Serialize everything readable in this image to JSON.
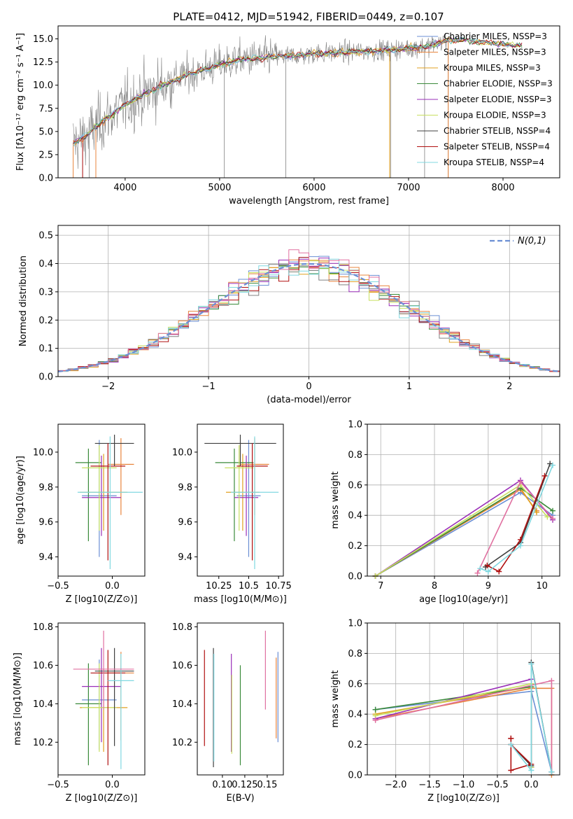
{
  "figure_title": "PLATE=0412, MJD=51942, FIBERID=0449, z=0.107",
  "model_colors": [
    "#6b8fd4",
    "#e8843c",
    "#e0a020",
    "#3a8a3a",
    "#9a2fb8",
    "#c8e060",
    "#404040",
    "#b01010",
    "#80d8e0"
  ],
  "chart_data": [
    {
      "id": "spectrum",
      "type": "line",
      "title": "PLATE=0412, MJD=51942, FIBERID=0449, z=0.107",
      "xlabel": "wavelength [Angstrom, rest frame]",
      "ylabel": "Flux [fλ10⁻¹⁷ erg cm⁻² s⁻¹ A⁻¹]",
      "xlim": [
        3290,
        8600
      ],
      "ylim": [
        0,
        16.4
      ],
      "xticks": [
        4000,
        5000,
        6000,
        7000,
        8000
      ],
      "yticks": [
        0.0,
        2.5,
        5.0,
        7.5,
        10.0,
        12.5,
        15.0
      ],
      "legend_position": "top-right",
      "legend": [
        {
          "label": "Chabrier MILES, NSSP=3",
          "color": "#6b8fd4"
        },
        {
          "label": "Salpeter MILES, NSSP=3",
          "color": "#e8843c"
        },
        {
          "label": "Kroupa MILES, NSSP=3",
          "color": "#e0a020"
        },
        {
          "label": "Chabrier ELODIE, NSSP=3",
          "color": "#3a8a3a"
        },
        {
          "label": "Salpeter ELODIE, NSSP=3",
          "color": "#9a2fb8"
        },
        {
          "label": "Kroupa ELODIE, NSSP=3",
          "color": "#c8e060"
        },
        {
          "label": "Chabrier STELIB, NSSP=4",
          "color": "#404040"
        },
        {
          "label": "Salpeter STELIB, NSSP=4",
          "color": "#b01010"
        },
        {
          "label": "Kroupa STELIB, NSSP=4",
          "color": "#80d8e0"
        }
      ],
      "continuum": {
        "x": [
          3450,
          3550,
          3700,
          3850,
          4000,
          4200,
          4400,
          4600,
          4800,
          5000,
          5200,
          5400,
          5600,
          5800,
          6000,
          6200,
          6400,
          6600,
          6800,
          7000,
          7200,
          7400,
          7600,
          7800,
          8000,
          8200
        ],
        "y": [
          3.8,
          4.2,
          5.6,
          6.8,
          7.9,
          9.0,
          10.0,
          10.9,
          11.6,
          12.2,
          12.7,
          12.9,
          13.1,
          13.2,
          13.4,
          13.5,
          13.6,
          13.7,
          13.8,
          14.0,
          14.2,
          14.8,
          14.9,
          14.6,
          14.4,
          14.2
        ]
      },
      "data_series": {
        "x_start": 3450,
        "x_end": 7400,
        "step": 5,
        "color": "#808080"
      },
      "spikes": [
        {
          "x": 3550,
          "y": 0.0
        },
        {
          "x": 3620,
          "y": 0.0
        },
        {
          "x": 3690,
          "y": 0.0
        },
        {
          "x": 5050,
          "y": 0.0
        },
        {
          "x": 5700,
          "y": 0.0
        },
        {
          "x": 6810,
          "y": 0.0
        },
        {
          "x": 7170,
          "y": 0.0
        },
        {
          "x": 7420,
          "y": 0.0
        }
      ]
    },
    {
      "id": "residuals",
      "type": "histogram",
      "xlabel": "(data-model)/error",
      "ylabel": "Normed distribution",
      "xlim": [
        -2.5,
        2.5
      ],
      "ylim": [
        0,
        0.535
      ],
      "xticks": [
        -2,
        -1,
        0,
        1,
        2
      ],
      "yticks": [
        0.0,
        0.1,
        0.2,
        0.3,
        0.4,
        0.5
      ],
      "grid": true,
      "bin_width": 0.1,
      "legend_position": "top-right",
      "legend": [
        {
          "label": "N(0,1)",
          "color": "#6b8fd4",
          "style": "dashed"
        }
      ]
    },
    {
      "id": "age-vs-z",
      "type": "errorbar",
      "xlabel": "Z [log10(Z/Z⊙)]",
      "ylabel": "age [log10(age/yr)]",
      "xlim": [
        -0.5,
        0.3
      ],
      "ylim": [
        9.29,
        10.16
      ],
      "xticks": [
        -0.5,
        0.0
      ],
      "yticks": [
        9.4,
        9.6,
        9.8,
        10.0
      ],
      "points": [
        {
          "x": -0.12,
          "y": 9.75,
          "xerr": 0.16,
          "ylo": 9.4,
          "yhi": 10.07,
          "color": "#6b8fd4"
        },
        {
          "x": 0.08,
          "y": 9.93,
          "xerr": 0.12,
          "ylo": 9.64,
          "yhi": 10.08,
          "color": "#e8843c"
        },
        {
          "x": -0.08,
          "y": 9.77,
          "xerr": 0.22,
          "ylo": 9.55,
          "yhi": 9.99,
          "color": "#e0a020"
        },
        {
          "x": -0.22,
          "y": 9.94,
          "xerr": 0.12,
          "ylo": 9.49,
          "yhi": 10.02,
          "color": "#3a8a3a"
        },
        {
          "x": -0.1,
          "y": 9.74,
          "xerr": 0.18,
          "ylo": 9.52,
          "yhi": 9.98,
          "color": "#9a2fb8"
        },
        {
          "x": -0.12,
          "y": 9.91,
          "xerr": 0.16,
          "ylo": 9.55,
          "yhi": 10.04,
          "color": "#c8e060"
        },
        {
          "x": 0.02,
          "y": 10.05,
          "xerr": 0.18,
          "ylo": 9.92,
          "yhi": 10.1,
          "color": "#404040"
        },
        {
          "x": -0.04,
          "y": 9.92,
          "xerr": 0.16,
          "ylo": 9.38,
          "yhi": 10.05,
          "color": "#b01010"
        },
        {
          "x": -0.02,
          "y": 9.77,
          "xerr": 0.3,
          "ylo": 9.33,
          "yhi": 10.09,
          "color": "#80d8e0"
        }
      ]
    },
    {
      "id": "age-vs-mass",
      "type": "errorbar",
      "xlabel": "mass [log10(M/M⊙)]",
      "ylabel": "",
      "xlim": [
        10.07,
        10.79
      ],
      "ylim": [
        9.29,
        10.16
      ],
      "xticks": [
        10.25,
        10.5,
        10.75
      ],
      "yticks": [
        9.4,
        9.6,
        9.8,
        10.0
      ],
      "points": [
        {
          "x": 10.5,
          "y": 9.75,
          "xerr": 0.1,
          "ylo": 9.4,
          "yhi": 10.07,
          "color": "#6b8fd4"
        },
        {
          "x": 10.55,
          "y": 9.93,
          "xerr": 0.12,
          "ylo": 9.64,
          "yhi": 10.08,
          "color": "#e8843c"
        },
        {
          "x": 10.45,
          "y": 9.77,
          "xerr": 0.14,
          "ylo": 9.55,
          "yhi": 9.99,
          "color": "#e0a020"
        },
        {
          "x": 10.38,
          "y": 9.94,
          "xerr": 0.16,
          "ylo": 9.49,
          "yhi": 10.02,
          "color": "#3a8a3a"
        },
        {
          "x": 10.48,
          "y": 9.74,
          "xerr": 0.1,
          "ylo": 9.52,
          "yhi": 9.98,
          "color": "#9a2fb8"
        },
        {
          "x": 10.42,
          "y": 9.91,
          "xerr": 0.12,
          "ylo": 9.55,
          "yhi": 10.04,
          "color": "#c8e060"
        },
        {
          "x": 10.43,
          "y": 10.05,
          "xerr": 0.3,
          "ylo": 9.92,
          "yhi": 10.1,
          "color": "#404040"
        },
        {
          "x": 10.53,
          "y": 9.92,
          "xerr": 0.13,
          "ylo": 9.38,
          "yhi": 10.05,
          "color": "#b01010"
        },
        {
          "x": 10.55,
          "y": 9.77,
          "xerr": 0.2,
          "ylo": 9.33,
          "yhi": 10.09,
          "color": "#80d8e0"
        }
      ]
    },
    {
      "id": "weight-vs-age",
      "type": "line",
      "xlabel": "age [log10(age/yr)]",
      "ylabel": "mass weight",
      "xlim": [
        6.75,
        10.33
      ],
      "ylim": [
        0.0,
        1.0
      ],
      "xticks": [
        7,
        8,
        9,
        10
      ],
      "yticks": [
        0.0,
        0.2,
        0.4,
        0.6,
        0.8,
        1.0
      ],
      "grid": true,
      "series": [
        {
          "color": "#6b8fd4",
          "x": [
            6.9,
            9.6,
            10.2
          ],
          "y": [
            0.0,
            0.55,
            0.4
          ]
        },
        {
          "color": "#e8843c",
          "x": [
            6.9,
            9.6,
            9.9
          ],
          "y": [
            0.0,
            0.57,
            0.43
          ]
        },
        {
          "color": "#e0a020",
          "x": [
            6.9,
            9.6,
            9.9
          ],
          "y": [
            0.0,
            0.58,
            0.42
          ]
        },
        {
          "color": "#3a8a3a",
          "x": [
            6.9,
            9.6,
            10.2
          ],
          "y": [
            0.0,
            0.58,
            0.43
          ]
        },
        {
          "color": "#9a2fb8",
          "x": [
            6.9,
            9.6,
            10.2
          ],
          "y": [
            0.0,
            0.63,
            0.37
          ]
        },
        {
          "color": "#c8e060",
          "x": [
            6.9,
            9.6,
            10.1
          ],
          "y": [
            0.0,
            0.6,
            0.39
          ]
        },
        {
          "color": "#e070a0",
          "x": [
            8.8,
            9.6,
            10.2
          ],
          "y": [
            0.02,
            0.62,
            0.38
          ]
        },
        {
          "color": "#404040",
          "x": [
            8.95,
            9.6,
            10.15
          ],
          "y": [
            0.06,
            0.22,
            0.74
          ]
        },
        {
          "color": "#b01010",
          "x": [
            8.98,
            9.2,
            9.6,
            10.05
          ],
          "y": [
            0.07,
            0.03,
            0.24,
            0.66
          ]
        },
        {
          "color": "#80d8e0",
          "x": [
            8.85,
            9.0,
            9.6,
            10.2
          ],
          "y": [
            0.05,
            0.03,
            0.2,
            0.73
          ]
        }
      ]
    },
    {
      "id": "mass-vs-z",
      "type": "errorbar",
      "xlabel": "Z [log10(Z/Z⊙)]",
      "ylabel": "mass [log10(M/M⊙)]",
      "xlim": [
        -0.5,
        0.3
      ],
      "ylim": [
        10.03,
        10.82
      ],
      "xticks": [
        -0.5,
        0.0
      ],
      "yticks": [
        10.2,
        10.4,
        10.6,
        10.8
      ],
      "points": [
        {
          "x": -0.12,
          "y": 10.42,
          "xerr": 0.16,
          "ylo": 10.16,
          "yhi": 10.63,
          "color": "#6b8fd4"
        },
        {
          "x": 0.08,
          "y": 10.56,
          "xerr": 0.12,
          "ylo": 10.21,
          "yhi": 10.67,
          "color": "#e8843c"
        },
        {
          "x": -0.08,
          "y": 10.38,
          "xerr": 0.22,
          "ylo": 10.15,
          "yhi": 10.58,
          "color": "#e0a020"
        },
        {
          "x": -0.22,
          "y": 10.4,
          "xerr": 0.12,
          "ylo": 10.08,
          "yhi": 10.61,
          "color": "#3a8a3a"
        },
        {
          "x": -0.1,
          "y": 10.49,
          "xerr": 0.18,
          "ylo": 10.2,
          "yhi": 10.69,
          "color": "#9a2fb8"
        },
        {
          "x": -0.12,
          "y": 10.38,
          "xerr": 0.16,
          "ylo": 10.15,
          "yhi": 10.61,
          "color": "#c8e060"
        },
        {
          "x": 0.02,
          "y": 10.57,
          "xerr": 0.18,
          "ylo": 10.18,
          "yhi": 10.69,
          "color": "#404040"
        },
        {
          "x": -0.04,
          "y": 10.56,
          "xerr": 0.16,
          "ylo": 10.08,
          "yhi": 10.68,
          "color": "#b01010"
        },
        {
          "x": 0.08,
          "y": 10.52,
          "xerr": 0.12,
          "ylo": 10.06,
          "yhi": 10.66,
          "color": "#80d8e0"
        },
        {
          "x": -0.08,
          "y": 10.58,
          "xerr": 0.28,
          "ylo": 10.37,
          "yhi": 10.78,
          "color": "#e070a0"
        }
      ]
    },
    {
      "id": "mass-vs-ebv",
      "type": "errorbar",
      "xlabel": "E(B-V)",
      "ylabel": "",
      "xlim": [
        0.072,
        0.168
      ],
      "ylim": [
        10.03,
        10.82
      ],
      "xticks": [
        0.1,
        0.125,
        0.15
      ],
      "xticklabels": [
        "0.10",
        "0.125",
        "0.15"
      ],
      "yticks": [
        10.2,
        10.4,
        10.6,
        10.8
      ],
      "points": [
        {
          "x": 0.08,
          "ylo": 10.18,
          "yhi": 10.68,
          "color": "#b01010"
        },
        {
          "x": 0.09,
          "ylo": 10.07,
          "yhi": 10.69,
          "color": "#404040"
        },
        {
          "x": 0.0905,
          "ylo": 10.1,
          "yhi": 10.66,
          "color": "#80d8e0"
        },
        {
          "x": 0.11,
          "ylo": 10.15,
          "yhi": 10.66,
          "color": "#9a2fb8"
        },
        {
          "x": 0.1105,
          "ylo": 10.14,
          "yhi": 10.55,
          "color": "#c8e060"
        },
        {
          "x": 0.12,
          "ylo": 10.08,
          "yhi": 10.6,
          "color": "#3a8a3a"
        },
        {
          "x": 0.148,
          "ylo": 10.37,
          "yhi": 10.78,
          "color": "#e070a0"
        },
        {
          "x": 0.16,
          "ylo": 10.22,
          "yhi": 10.64,
          "color": "#e8843c"
        },
        {
          "x": 0.162,
          "ylo": 10.2,
          "yhi": 10.67,
          "color": "#6b8fd4"
        }
      ]
    },
    {
      "id": "weight-vs-z",
      "type": "line",
      "xlabel": "Z [log10(Z/Z⊙)]",
      "ylabel": "mass weight",
      "xlim": [
        -2.42,
        0.42
      ],
      "ylim": [
        0.0,
        1.0
      ],
      "xticks": [
        -2.0,
        -1.5,
        -1.0,
        -0.5,
        0.0
      ],
      "yticks": [
        0.0,
        0.2,
        0.4,
        0.6,
        0.8,
        1.0
      ],
      "grid": true,
      "series": [
        {
          "color": "#6b8fd4",
          "x": [
            -2.3,
            0.0,
            0.3
          ],
          "y": [
            0.43,
            0.55,
            0.02
          ]
        },
        {
          "color": "#e8843c",
          "x": [
            -2.3,
            0.0,
            0.3,
            0.3
          ],
          "y": [
            0.37,
            0.57,
            0.57,
            0.0
          ]
        },
        {
          "color": "#e0a020",
          "x": [
            -2.3,
            0.0
          ],
          "y": [
            0.4,
            0.58
          ]
        },
        {
          "color": "#3a8a3a",
          "x": [
            -2.3,
            0.0,
            0.0
          ],
          "y": [
            0.43,
            0.58,
            0.05
          ]
        },
        {
          "color": "#9a2fb8",
          "x": [
            -2.3,
            0.0,
            0.0
          ],
          "y": [
            0.37,
            0.63,
            0.05
          ]
        },
        {
          "color": "#c8e060",
          "x": [
            -2.3,
            0.0,
            0.0
          ],
          "y": [
            0.39,
            0.6,
            0.05
          ]
        },
        {
          "color": "#e070a0",
          "x": [
            -2.3,
            0.3,
            0.3
          ],
          "y": [
            0.36,
            0.62,
            0.02
          ]
        },
        {
          "color": "#404040",
          "x": [
            -0.3,
            0.0,
            0.0,
            0.3
          ],
          "y": [
            0.2,
            0.06,
            0.74,
            0.02
          ]
        },
        {
          "color": "#b01010",
          "x": [
            -0.3,
            -0.3,
            0.0,
            -0.3,
            -0.3
          ],
          "y": [
            0.24,
            0.03,
            0.07,
            0.2,
            0.24
          ]
        },
        {
          "color": "#80d8e0",
          "x": [
            -0.3,
            0.0,
            0.0,
            0.3
          ],
          "y": [
            0.2,
            0.03,
            0.73,
            0.02
          ]
        }
      ]
    }
  ]
}
